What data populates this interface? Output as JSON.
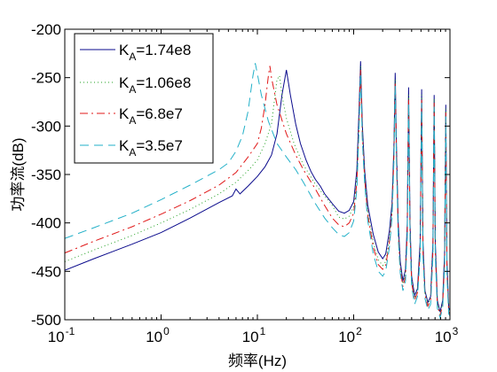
{
  "chart_data": {
    "type": "line",
    "xscale": "log",
    "xlim": [
      0.1,
      1000
    ],
    "ylim": [
      -500,
      -200
    ],
    "xlabel": "频率(Hz)",
    "ylabel": "功率流(dB)",
    "grid": false,
    "legend_placement": "top-left",
    "x_ticks": [
      {
        "value": 0.1,
        "base": "10",
        "exp": "-1"
      },
      {
        "value": 1,
        "base": "10",
        "exp": "0"
      },
      {
        "value": 10,
        "base": "10",
        "exp": "1"
      },
      {
        "value": 100,
        "base": "10",
        "exp": "2"
      },
      {
        "value": 1000,
        "base": "10",
        "exp": "3"
      }
    ],
    "y_ticks": [
      "-200",
      "-250",
      "-300",
      "-350",
      "-400",
      "-450",
      "-500"
    ],
    "series": [
      {
        "label_main": "K",
        "label_sub": "A",
        "label_value": "=1.74e8",
        "color": "#0a0a8c",
        "dash": "",
        "points": [
          [
            0.1,
            -449
          ],
          [
            0.2,
            -437
          ],
          [
            0.5,
            -422
          ],
          [
            1,
            -410
          ],
          [
            2,
            -395
          ],
          [
            4,
            -379
          ],
          [
            5.5,
            -372
          ],
          [
            6,
            -365
          ],
          [
            6.6,
            -370
          ],
          [
            8,
            -362
          ],
          [
            10,
            -352
          ],
          [
            12,
            -342
          ],
          [
            14,
            -330
          ],
          [
            16,
            -308
          ],
          [
            18,
            -268
          ],
          [
            20,
            -242
          ],
          [
            22,
            -268
          ],
          [
            25,
            -298
          ],
          [
            28,
            -318
          ],
          [
            32,
            -335
          ],
          [
            36,
            -347
          ],
          [
            40,
            -355
          ],
          [
            45,
            -362
          ],
          [
            50,
            -370
          ],
          [
            60,
            -380
          ],
          [
            70,
            -388
          ],
          [
            80,
            -390
          ],
          [
            90,
            -387
          ],
          [
            100,
            -378
          ],
          [
            108,
            -345
          ],
          [
            113,
            -290
          ],
          [
            118,
            -233
          ],
          [
            123,
            -300
          ],
          [
            130,
            -346
          ],
          [
            140,
            -382
          ],
          [
            160,
            -412
          ],
          [
            180,
            -430
          ],
          [
            200,
            -437
          ],
          [
            215,
            -432
          ],
          [
            235,
            -408
          ],
          [
            250,
            -380
          ],
          [
            262,
            -320
          ],
          [
            270,
            -245
          ],
          [
            278,
            -320
          ],
          [
            290,
            -400
          ],
          [
            305,
            -440
          ],
          [
            325,
            -460
          ],
          [
            345,
            -448
          ],
          [
            360,
            -400
          ],
          [
            372,
            -260
          ],
          [
            385,
            -400
          ],
          [
            400,
            -455
          ],
          [
            430,
            -475
          ],
          [
            460,
            -468
          ],
          [
            490,
            -420
          ],
          [
            508,
            -262
          ],
          [
            525,
            -420
          ],
          [
            550,
            -470
          ],
          [
            590,
            -482
          ],
          [
            630,
            -476
          ],
          [
            665,
            -420
          ],
          [
            685,
            -268
          ],
          [
            705,
            -420
          ],
          [
            740,
            -480
          ],
          [
            790,
            -492
          ],
          [
            840,
            -480
          ],
          [
            880,
            -430
          ],
          [
            905,
            -278
          ],
          [
            930,
            -440
          ],
          [
            970,
            -488
          ],
          [
            1000,
            -490
          ]
        ]
      },
      {
        "label_main": "K",
        "label_sub": "A",
        "label_value": "=1.06e8",
        "color": "#22a022",
        "dash": "1 3",
        "points": [
          [
            0.1,
            -440
          ],
          [
            0.2,
            -428
          ],
          [
            0.5,
            -413
          ],
          [
            1,
            -400
          ],
          [
            2,
            -386
          ],
          [
            4,
            -370
          ],
          [
            6,
            -358
          ],
          [
            8,
            -346
          ],
          [
            10,
            -335
          ],
          [
            12,
            -318
          ],
          [
            14,
            -298
          ],
          [
            16,
            -252
          ],
          [
            17,
            -248
          ],
          [
            18,
            -268
          ],
          [
            20,
            -292
          ],
          [
            24,
            -318
          ],
          [
            30,
            -340
          ],
          [
            40,
            -360
          ],
          [
            50,
            -372
          ],
          [
            60,
            -382
          ],
          [
            70,
            -394
          ],
          [
            80,
            -396
          ],
          [
            90,
            -393
          ],
          [
            100,
            -383
          ],
          [
            108,
            -350
          ],
          [
            113,
            -300
          ],
          [
            118,
            -238
          ],
          [
            123,
            -305
          ],
          [
            130,
            -350
          ],
          [
            140,
            -388
          ],
          [
            160,
            -420
          ],
          [
            180,
            -438
          ],
          [
            200,
            -444
          ],
          [
            215,
            -440
          ],
          [
            235,
            -415
          ],
          [
            250,
            -385
          ],
          [
            262,
            -325
          ],
          [
            270,
            -252
          ],
          [
            278,
            -325
          ],
          [
            290,
            -405
          ],
          [
            305,
            -445
          ],
          [
            325,
            -463
          ],
          [
            345,
            -452
          ],
          [
            360,
            -405
          ],
          [
            372,
            -268
          ],
          [
            385,
            -405
          ],
          [
            400,
            -458
          ],
          [
            430,
            -478
          ],
          [
            460,
            -470
          ],
          [
            490,
            -425
          ],
          [
            508,
            -268
          ],
          [
            525,
            -425
          ],
          [
            550,
            -472
          ],
          [
            590,
            -484
          ],
          [
            630,
            -478
          ],
          [
            665,
            -425
          ],
          [
            685,
            -272
          ],
          [
            705,
            -425
          ],
          [
            740,
            -482
          ],
          [
            790,
            -494
          ],
          [
            840,
            -482
          ],
          [
            880,
            -435
          ],
          [
            905,
            -282
          ],
          [
            930,
            -445
          ],
          [
            970,
            -490
          ],
          [
            1000,
            -492
          ]
        ]
      },
      {
        "label_main": "K",
        "label_sub": "A",
        "label_value": "=6.8e7",
        "color": "#e01818",
        "dash": "9 4 2 4",
        "points": [
          [
            0.1,
            -431
          ],
          [
            0.2,
            -419
          ],
          [
            0.5,
            -404
          ],
          [
            1,
            -391
          ],
          [
            2,
            -377
          ],
          [
            4,
            -361
          ],
          [
            6,
            -348
          ],
          [
            8,
            -332
          ],
          [
            10,
            -318
          ],
          [
            11,
            -302
          ],
          [
            12,
            -278
          ],
          [
            13,
            -248
          ],
          [
            13.5,
            -238
          ],
          [
            14,
            -250
          ],
          [
            16,
            -278
          ],
          [
            20,
            -308
          ],
          [
            25,
            -330
          ],
          [
            30,
            -345
          ],
          [
            40,
            -365
          ],
          [
            50,
            -382
          ],
          [
            60,
            -395
          ],
          [
            70,
            -402
          ],
          [
            80,
            -404
          ],
          [
            90,
            -400
          ],
          [
            100,
            -390
          ],
          [
            108,
            -358
          ],
          [
            113,
            -305
          ],
          [
            118,
            -242
          ],
          [
            123,
            -310
          ],
          [
            130,
            -355
          ],
          [
            140,
            -392
          ],
          [
            160,
            -425
          ],
          [
            180,
            -443
          ],
          [
            200,
            -448
          ],
          [
            215,
            -444
          ],
          [
            235,
            -420
          ],
          [
            250,
            -390
          ],
          [
            262,
            -330
          ],
          [
            270,
            -255
          ],
          [
            278,
            -330
          ],
          [
            290,
            -410
          ],
          [
            305,
            -448
          ],
          [
            325,
            -466
          ],
          [
            345,
            -455
          ],
          [
            360,
            -410
          ],
          [
            372,
            -272
          ],
          [
            385,
            -410
          ],
          [
            400,
            -462
          ],
          [
            430,
            -480
          ],
          [
            460,
            -472
          ],
          [
            490,
            -430
          ],
          [
            508,
            -272
          ],
          [
            525,
            -430
          ],
          [
            550,
            -474
          ],
          [
            590,
            -486
          ],
          [
            630,
            -480
          ],
          [
            665,
            -430
          ],
          [
            685,
            -276
          ],
          [
            705,
            -430
          ],
          [
            740,
            -484
          ],
          [
            790,
            -496
          ],
          [
            840,
            -484
          ],
          [
            880,
            -440
          ],
          [
            905,
            -286
          ],
          [
            930,
            -450
          ],
          [
            970,
            -492
          ],
          [
            1000,
            -494
          ]
        ]
      },
      {
        "label_main": "K",
        "label_sub": "A",
        "label_value": "=3.5e7",
        "color": "#22b0c8",
        "dash": "10 6",
        "points": [
          [
            0.1,
            -416
          ],
          [
            0.2,
            -405
          ],
          [
            0.5,
            -390
          ],
          [
            1,
            -376
          ],
          [
            2,
            -361
          ],
          [
            4,
            -345
          ],
          [
            5,
            -338
          ],
          [
            6,
            -326
          ],
          [
            7,
            -310
          ],
          [
            8,
            -285
          ],
          [
            9,
            -248
          ],
          [
            9.5,
            -235
          ],
          [
            10,
            -246
          ],
          [
            11,
            -268
          ],
          [
            13,
            -295
          ],
          [
            16,
            -318
          ],
          [
            20,
            -332
          ],
          [
            25,
            -345
          ],
          [
            30,
            -358
          ],
          [
            40,
            -380
          ],
          [
            50,
            -395
          ],
          [
            60,
            -405
          ],
          [
            70,
            -412
          ],
          [
            80,
            -414
          ],
          [
            90,
            -410
          ],
          [
            100,
            -398
          ],
          [
            108,
            -365
          ],
          [
            113,
            -310
          ],
          [
            118,
            -246
          ],
          [
            123,
            -315
          ],
          [
            130,
            -360
          ],
          [
            140,
            -398
          ],
          [
            160,
            -432
          ],
          [
            180,
            -450
          ],
          [
            200,
            -455
          ],
          [
            215,
            -450
          ],
          [
            235,
            -425
          ],
          [
            250,
            -395
          ],
          [
            262,
            -335
          ],
          [
            270,
            -258
          ],
          [
            278,
            -335
          ],
          [
            290,
            -415
          ],
          [
            305,
            -452
          ],
          [
            325,
            -470
          ],
          [
            345,
            -460
          ],
          [
            360,
            -415
          ],
          [
            372,
            -276
          ],
          [
            385,
            -415
          ],
          [
            400,
            -466
          ],
          [
            430,
            -484
          ],
          [
            460,
            -476
          ],
          [
            490,
            -435
          ],
          [
            508,
            -276
          ],
          [
            525,
            -435
          ],
          [
            550,
            -478
          ],
          [
            590,
            -490
          ],
          [
            630,
            -484
          ],
          [
            665,
            -435
          ],
          [
            685,
            -280
          ],
          [
            705,
            -435
          ],
          [
            740,
            -488
          ],
          [
            790,
            -498
          ],
          [
            840,
            -488
          ],
          [
            880,
            -445
          ],
          [
            905,
            -290
          ],
          [
            930,
            -455
          ],
          [
            970,
            -494
          ],
          [
            1000,
            -496
          ]
        ]
      }
    ]
  }
}
